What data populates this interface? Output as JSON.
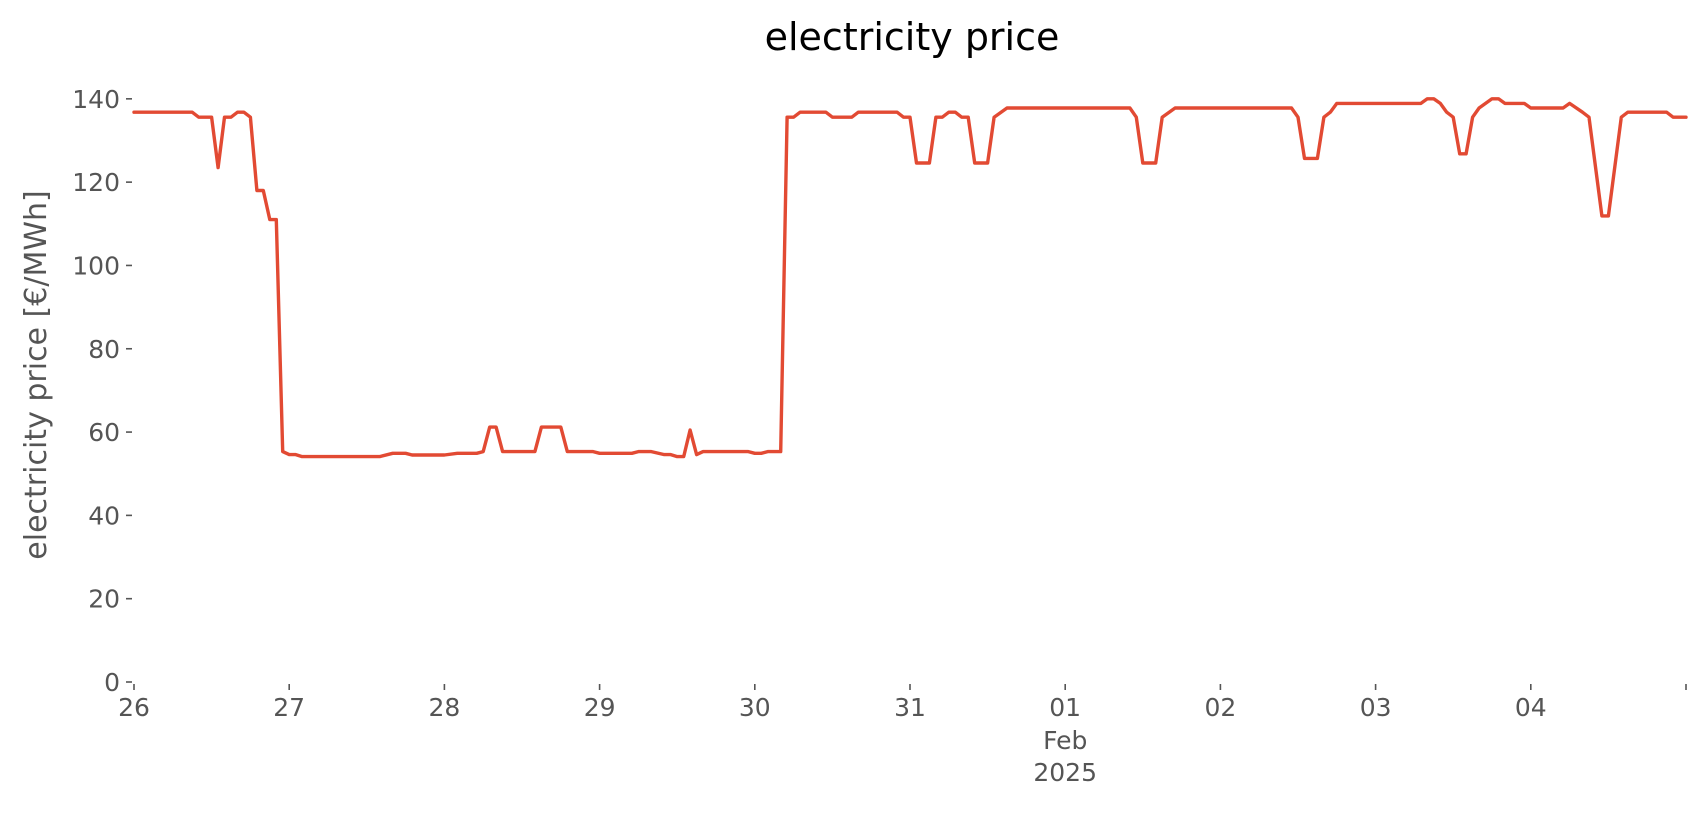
{
  "chart_data": {
    "type": "line",
    "title": "electricity price",
    "xlabel": "",
    "ylabel": "electricity price [€/MWh]",
    "ylim": [
      0,
      145
    ],
    "xlim": [
      "2025-01-26T00:00",
      "2025-02-05T00:00"
    ],
    "grid": false,
    "line_color": "#E24A33",
    "yticks": [
      0,
      20,
      40,
      60,
      80,
      100,
      120,
      140
    ],
    "xticks": [
      {
        "label": "26",
        "date": "2025-01-26"
      },
      {
        "label": "27",
        "date": "2025-01-27"
      },
      {
        "label": "28",
        "date": "2025-01-28"
      },
      {
        "label": "29",
        "date": "2025-01-29"
      },
      {
        "label": "30",
        "date": "2025-01-30"
      },
      {
        "label": "31",
        "date": "2025-01-31"
      },
      {
        "label": "01",
        "date": "2025-02-01"
      },
      {
        "label": "02",
        "date": "2025-02-02"
      },
      {
        "label": "03",
        "date": "2025-02-03"
      },
      {
        "label": "04",
        "date": "2025-02-04"
      }
    ],
    "date_sublabel": {
      "month": "Feb",
      "year": "2025",
      "date": "2025-02-01"
    },
    "series": [
      {
        "values": [
          [
            "2025-01-26T00:00",
            136.8
          ],
          [
            "2025-01-26T09:00",
            136.8
          ],
          [
            "2025-01-26T10:00",
            135.6
          ],
          [
            "2025-01-26T12:00",
            135.6
          ],
          [
            "2025-01-26T13:00",
            123.5
          ],
          [
            "2025-01-26T14:00",
            135.6
          ],
          [
            "2025-01-26T15:00",
            135.6
          ],
          [
            "2025-01-26T16:00",
            136.8
          ],
          [
            "2025-01-26T17:00",
            136.8
          ],
          [
            "2025-01-26T18:00",
            135.6
          ],
          [
            "2025-01-26T19:00",
            118.0
          ],
          [
            "2025-01-26T20:00",
            118.0
          ],
          [
            "2025-01-26T21:00",
            111.0
          ],
          [
            "2025-01-26T22:00",
            111.0
          ],
          [
            "2025-01-26T23:00",
            55.3
          ],
          [
            "2025-01-27T00:00",
            54.6
          ],
          [
            "2025-01-27T01:00",
            54.6
          ],
          [
            "2025-01-27T02:00",
            54.1
          ],
          [
            "2025-01-27T14:00",
            54.1
          ],
          [
            "2025-01-27T16:00",
            54.9
          ],
          [
            "2025-01-27T18:00",
            54.9
          ],
          [
            "2025-01-27T19:00",
            54.5
          ],
          [
            "2025-01-28T00:00",
            54.5
          ],
          [
            "2025-01-28T02:00",
            54.9
          ],
          [
            "2025-01-28T05:00",
            54.9
          ],
          [
            "2025-01-28T06:00",
            55.3
          ],
          [
            "2025-01-28T07:00",
            61.2
          ],
          [
            "2025-01-28T08:00",
            61.2
          ],
          [
            "2025-01-28T09:00",
            55.3
          ],
          [
            "2025-01-28T14:00",
            55.3
          ],
          [
            "2025-01-28T15:00",
            61.2
          ],
          [
            "2025-01-28T18:00",
            61.2
          ],
          [
            "2025-01-28T19:00",
            55.3
          ],
          [
            "2025-01-28T23:00",
            55.3
          ],
          [
            "2025-01-29T00:00",
            54.9
          ],
          [
            "2025-01-29T05:00",
            54.9
          ],
          [
            "2025-01-29T06:00",
            55.3
          ],
          [
            "2025-01-29T08:00",
            55.3
          ],
          [
            "2025-01-29T10:00",
            54.6
          ],
          [
            "2025-01-29T11:00",
            54.6
          ],
          [
            "2025-01-29T12:00",
            54.1
          ],
          [
            "2025-01-29T13:00",
            54.1
          ],
          [
            "2025-01-29T14:00",
            60.5
          ],
          [
            "2025-01-29T15:00",
            54.6
          ],
          [
            "2025-01-29T16:00",
            55.3
          ],
          [
            "2025-01-29T23:00",
            55.3
          ],
          [
            "2025-01-30T00:00",
            54.9
          ],
          [
            "2025-01-30T01:00",
            54.9
          ],
          [
            "2025-01-30T02:00",
            55.3
          ],
          [
            "2025-01-30T04:00",
            55.3
          ],
          [
            "2025-01-30T05:00",
            135.6
          ],
          [
            "2025-01-30T06:00",
            135.6
          ],
          [
            "2025-01-30T07:00",
            136.8
          ],
          [
            "2025-01-30T11:00",
            136.8
          ],
          [
            "2025-01-30T12:00",
            135.6
          ],
          [
            "2025-01-30T15:00",
            135.6
          ],
          [
            "2025-01-30T16:00",
            136.8
          ],
          [
            "2025-01-30T22:00",
            136.8
          ],
          [
            "2025-01-30T23:00",
            135.6
          ],
          [
            "2025-01-31T00:00",
            135.6
          ],
          [
            "2025-01-31T01:00",
            124.6
          ],
          [
            "2025-01-31T03:00",
            124.6
          ],
          [
            "2025-01-31T04:00",
            135.6
          ],
          [
            "2025-01-31T05:00",
            135.6
          ],
          [
            "2025-01-31T06:00",
            136.8
          ],
          [
            "2025-01-31T07:00",
            136.8
          ],
          [
            "2025-01-31T08:00",
            135.6
          ],
          [
            "2025-01-31T09:00",
            135.6
          ],
          [
            "2025-01-31T10:00",
            124.6
          ],
          [
            "2025-01-31T12:00",
            124.6
          ],
          [
            "2025-01-31T13:00",
            135.6
          ],
          [
            "2025-01-31T15:00",
            137.8
          ],
          [
            "2025-02-01T10:00",
            137.8
          ],
          [
            "2025-02-01T11:00",
            135.6
          ],
          [
            "2025-02-01T12:00",
            124.6
          ],
          [
            "2025-02-01T14:00",
            124.6
          ],
          [
            "2025-02-01T15:00",
            135.6
          ],
          [
            "2025-02-01T17:00",
            137.8
          ],
          [
            "2025-02-02T11:00",
            137.8
          ],
          [
            "2025-02-02T12:00",
            135.6
          ],
          [
            "2025-02-02T13:00",
            125.7
          ],
          [
            "2025-02-02T15:00",
            125.7
          ],
          [
            "2025-02-02T16:00",
            135.6
          ],
          [
            "2025-02-02T17:00",
            136.8
          ],
          [
            "2025-02-02T18:00",
            138.9
          ],
          [
            "2025-02-03T07:00",
            138.9
          ],
          [
            "2025-02-03T08:00",
            140.0
          ],
          [
            "2025-02-03T09:00",
            140.0
          ],
          [
            "2025-02-03T10:00",
            138.9
          ],
          [
            "2025-02-03T11:00",
            136.8
          ],
          [
            "2025-02-03T12:00",
            135.6
          ],
          [
            "2025-02-03T13:00",
            126.8
          ],
          [
            "2025-02-03T14:00",
            126.8
          ],
          [
            "2025-02-03T15:00",
            135.6
          ],
          [
            "2025-02-03T16:00",
            137.8
          ],
          [
            "2025-02-03T18:00",
            140.0
          ],
          [
            "2025-02-03T19:00",
            140.0
          ],
          [
            "2025-02-03T20:00",
            138.9
          ],
          [
            "2025-02-03T23:00",
            138.9
          ],
          [
            "2025-02-04T00:00",
            137.8
          ],
          [
            "2025-02-04T05:00",
            137.8
          ],
          [
            "2025-02-04T06:00",
            138.9
          ],
          [
            "2025-02-04T08:00",
            136.8
          ],
          [
            "2025-02-04T09:00",
            135.6
          ],
          [
            "2025-02-04T11:00",
            111.9
          ],
          [
            "2025-02-04T12:00",
            111.9
          ],
          [
            "2025-02-04T14:00",
            135.6
          ],
          [
            "2025-02-04T15:00",
            136.8
          ],
          [
            "2025-02-04T21:00",
            136.8
          ],
          [
            "2025-02-04T22:00",
            135.6
          ],
          [
            "2025-02-05T00:00",
            135.6
          ]
        ]
      }
    ]
  }
}
